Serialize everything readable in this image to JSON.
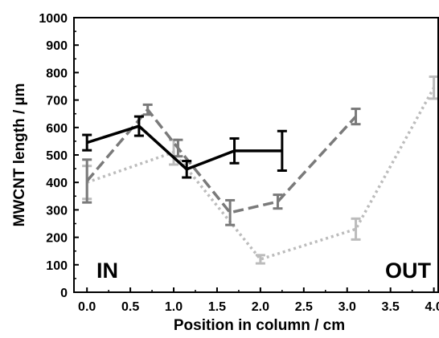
{
  "chart_data": {
    "type": "line",
    "xlabel": "Position in column / cm",
    "ylabel": "MWCNT  length / µm",
    "xlim": [
      -0.15,
      4.05
    ],
    "ylim": [
      0,
      1000
    ],
    "x_ticks": [
      0.0,
      0.5,
      1.0,
      1.5,
      2.0,
      2.5,
      3.0,
      3.5,
      4.0
    ],
    "x_tick_labels": [
      "0.0",
      "0.5",
      "1.0",
      "1.5",
      "2.0",
      "2.5",
      "3.0",
      "3.5",
      "4.0"
    ],
    "y_ticks": [
      0,
      100,
      200,
      300,
      400,
      500,
      600,
      700,
      800,
      900,
      1000
    ],
    "y_tick_labels": [
      "0",
      "100",
      "200",
      "300",
      "400",
      "500",
      "600",
      "700",
      "800",
      "900",
      "1000"
    ],
    "grid": false,
    "legend": "none",
    "annotations": [
      {
        "text": "IN",
        "position": "bottom-left"
      },
      {
        "text": "OUT",
        "position": "bottom-right"
      }
    ],
    "series": [
      {
        "style": "solid",
        "color": "#000000",
        "x": [
          0.0,
          0.6,
          1.15,
          1.7,
          2.25
        ],
        "y": [
          545,
          605,
          448,
          515,
          515
        ],
        "err": [
          28,
          35,
          30,
          45,
          72
        ]
      },
      {
        "style": "dashed",
        "color": "#7a7a7a",
        "x": [
          0.0,
          0.7,
          1.05,
          1.65,
          2.2,
          3.1
        ],
        "y": [
          405,
          665,
          525,
          290,
          330,
          640
        ],
        "err": [
          78,
          18,
          30,
          45,
          25,
          28
        ]
      },
      {
        "style": "dotted",
        "color": "#bcbcbc",
        "x": [
          0.0,
          1.0,
          2.0,
          3.1,
          4.0
        ],
        "y": [
          400,
          510,
          120,
          230,
          745
        ],
        "err": [
          60,
          45,
          15,
          38,
          40
        ]
      }
    ]
  }
}
